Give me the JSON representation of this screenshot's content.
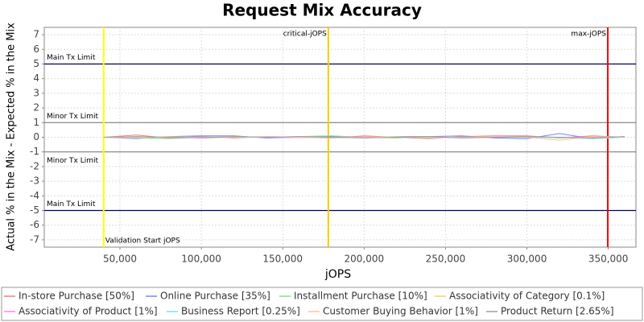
{
  "chart_data": {
    "type": "line",
    "title": "Request Mix Accuracy",
    "x_label": "jOPS",
    "y_label": "Actual % in the Mix - Expected % in the Mix",
    "xlim": [
      3500,
      367000
    ],
    "ylim": [
      -7.5,
      7.5
    ],
    "xticks": [
      {
        "value": 50000,
        "label": "50,000"
      },
      {
        "value": 100000,
        "label": "100,000"
      },
      {
        "value": 150000,
        "label": "150,000"
      },
      {
        "value": 200000,
        "label": "200,000"
      },
      {
        "value": 250000,
        "label": "250,000"
      },
      {
        "value": 300000,
        "label": "300,000"
      },
      {
        "value": 350000,
        "label": "350,000"
      }
    ],
    "yticks": [
      -7,
      -6,
      -5,
      -4,
      -3,
      -2,
      -1,
      0,
      1,
      2,
      3,
      4,
      5,
      6,
      7
    ],
    "grid": true,
    "x": [
      40000,
      60000,
      80000,
      100000,
      120000,
      140000,
      160000,
      180000,
      200000,
      220000,
      240000,
      260000,
      280000,
      300000,
      320000,
      340000,
      360000
    ],
    "series": [
      {
        "name": "In-store Purchase [50%]",
        "color": "#f08080",
        "values": [
          0,
          0.15,
          -0.05,
          0.05,
          -0.05,
          0.05,
          0,
          -0.05,
          0.1,
          0,
          -0.1,
          0.05,
          0.1,
          0.1,
          -0.05,
          0.1,
          0
        ]
      },
      {
        "name": "Online Purchase [35%]",
        "color": "#8080ff",
        "values": [
          0,
          -0.1,
          0.05,
          0.1,
          0.1,
          -0.05,
          0,
          0.05,
          -0.05,
          0.05,
          0.05,
          0.1,
          -0.05,
          -0.1,
          0.25,
          -0.1,
          0.05
        ]
      },
      {
        "name": "Installment Purchase [10%]",
        "color": "#80e080",
        "values": [
          0,
          -0.05,
          -0.1,
          0,
          0.05,
          0,
          0.05,
          0.1,
          0,
          -0.05,
          0.05,
          -0.05,
          0,
          0.05,
          -0.05,
          0,
          0
        ]
      },
      {
        "name": "Associativity of Category [0.1%]",
        "color": "#e0e060",
        "values": [
          0,
          0,
          0,
          0,
          0,
          0,
          0,
          0,
          0,
          0,
          0,
          0,
          0,
          0,
          0,
          0,
          0
        ]
      },
      {
        "name": "Associativity of Product [1%]",
        "color": "#ff80ff",
        "values": [
          0,
          0.02,
          -0.02,
          0,
          0.02,
          0,
          -0.02,
          0,
          0.02,
          0,
          0,
          -0.02,
          0.02,
          0,
          0,
          0.02,
          0
        ]
      },
      {
        "name": "Business Report [0.25%]",
        "color": "#80e0e0",
        "values": [
          0,
          0.02,
          0,
          -0.02,
          0,
          0.02,
          0,
          0,
          -0.05,
          0.02,
          0,
          0,
          0.02,
          -0.02,
          0,
          -0.1,
          0
        ]
      },
      {
        "name": "Customer Buying Behavior [1%]",
        "color": "#ffc0a0",
        "values": [
          0,
          -0.05,
          0.05,
          -0.05,
          0,
          0.05,
          0,
          -0.05,
          0,
          0.05,
          -0.05,
          0,
          0.05,
          0,
          -0.2,
          0.05,
          0
        ]
      },
      {
        "name": "Product Return [2.65%]",
        "color": "#a0a0a0",
        "values": [
          0,
          0.05,
          0,
          -0.05,
          0.05,
          0,
          0.05,
          0,
          -0.05,
          0,
          0.05,
          -0.05,
          0,
          0.05,
          0,
          -0.05,
          0.05
        ]
      }
    ],
    "horizontal_markers": [
      {
        "value": 5,
        "label": "Main Tx Limit",
        "color": "#000060"
      },
      {
        "value": 1,
        "label": "Minor Tx Limit",
        "color": "#808080"
      },
      {
        "value": -1,
        "label": "Minor Tx Limit",
        "color": "#808080"
      },
      {
        "value": -5,
        "label": "Main Tx Limit",
        "color": "#000060"
      }
    ],
    "vertical_markers": [
      {
        "value": 40000,
        "label": "Validation Start jOPS",
        "color": "#ffff00"
      },
      {
        "value": 178000,
        "label": "critical-jOPS",
        "color": "#ffc800"
      },
      {
        "value": 349700,
        "label": "max-jOPS",
        "color": "#ff0000"
      }
    ]
  }
}
